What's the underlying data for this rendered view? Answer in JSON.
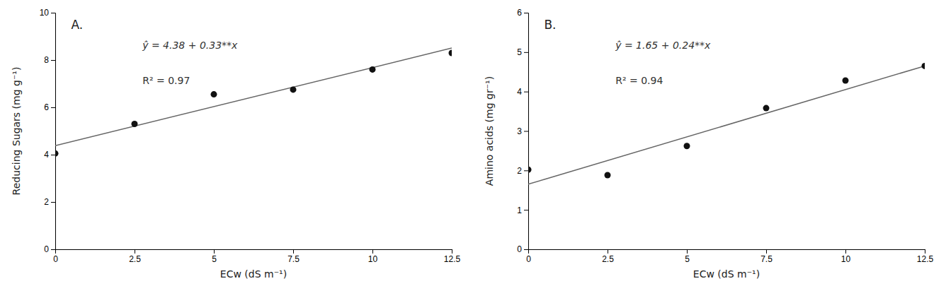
{
  "chart_data": [
    {
      "type": "scatter",
      "title": "A.",
      "x_label": "ECw (dS m⁻¹)",
      "y_label": "Reducing Sugars (mg g⁻¹)",
      "annotations": [
        "ŷ = 4.38 + 0.33**x",
        "R² = 0.97"
      ],
      "series": [
        {
          "type": "scatter",
          "color": "#111111",
          "x": [
            0,
            2.5,
            5,
            7.5,
            10,
            12.5
          ],
          "values": [
            4.05,
            5.3,
            6.55,
            6.75,
            7.6,
            8.3
          ]
        },
        {
          "type": "line",
          "color": "#666666",
          "x": [
            0,
            12.5
          ],
          "values": [
            4.38,
            8.505
          ]
        }
      ],
      "xlim": [
        0,
        12.5
      ],
      "ylim": [
        0,
        10
      ],
      "xticks": [
        0,
        2.5,
        5,
        7.5,
        10,
        12.5
      ],
      "yticks": [
        0,
        2,
        4,
        6,
        8,
        10
      ],
      "grid": false
    },
    {
      "type": "scatter",
      "title": "B.",
      "x_label": "ECw (dS m⁻¹)",
      "y_label": "Amino acids (mg gr⁻¹)",
      "annotations": [
        "ŷ = 1.65 + 0.24**x",
        "R² = 0.94"
      ],
      "series": [
        {
          "type": "scatter",
          "color": "#111111",
          "x": [
            0,
            2.5,
            5,
            7.5,
            10,
            12.5
          ],
          "values": [
            2.02,
            1.88,
            2.62,
            3.58,
            4.28,
            4.65
          ]
        },
        {
          "type": "line",
          "color": "#666666",
          "x": [
            0,
            12.5
          ],
          "values": [
            1.65,
            4.65
          ]
        }
      ],
      "xlim": [
        0,
        12.5
      ],
      "ylim": [
        0,
        6
      ],
      "xticks": [
        0,
        2.5,
        5,
        7.5,
        10,
        12.5
      ],
      "yticks": [
        0,
        1,
        2,
        3,
        4,
        5,
        6
      ],
      "grid": false
    }
  ]
}
